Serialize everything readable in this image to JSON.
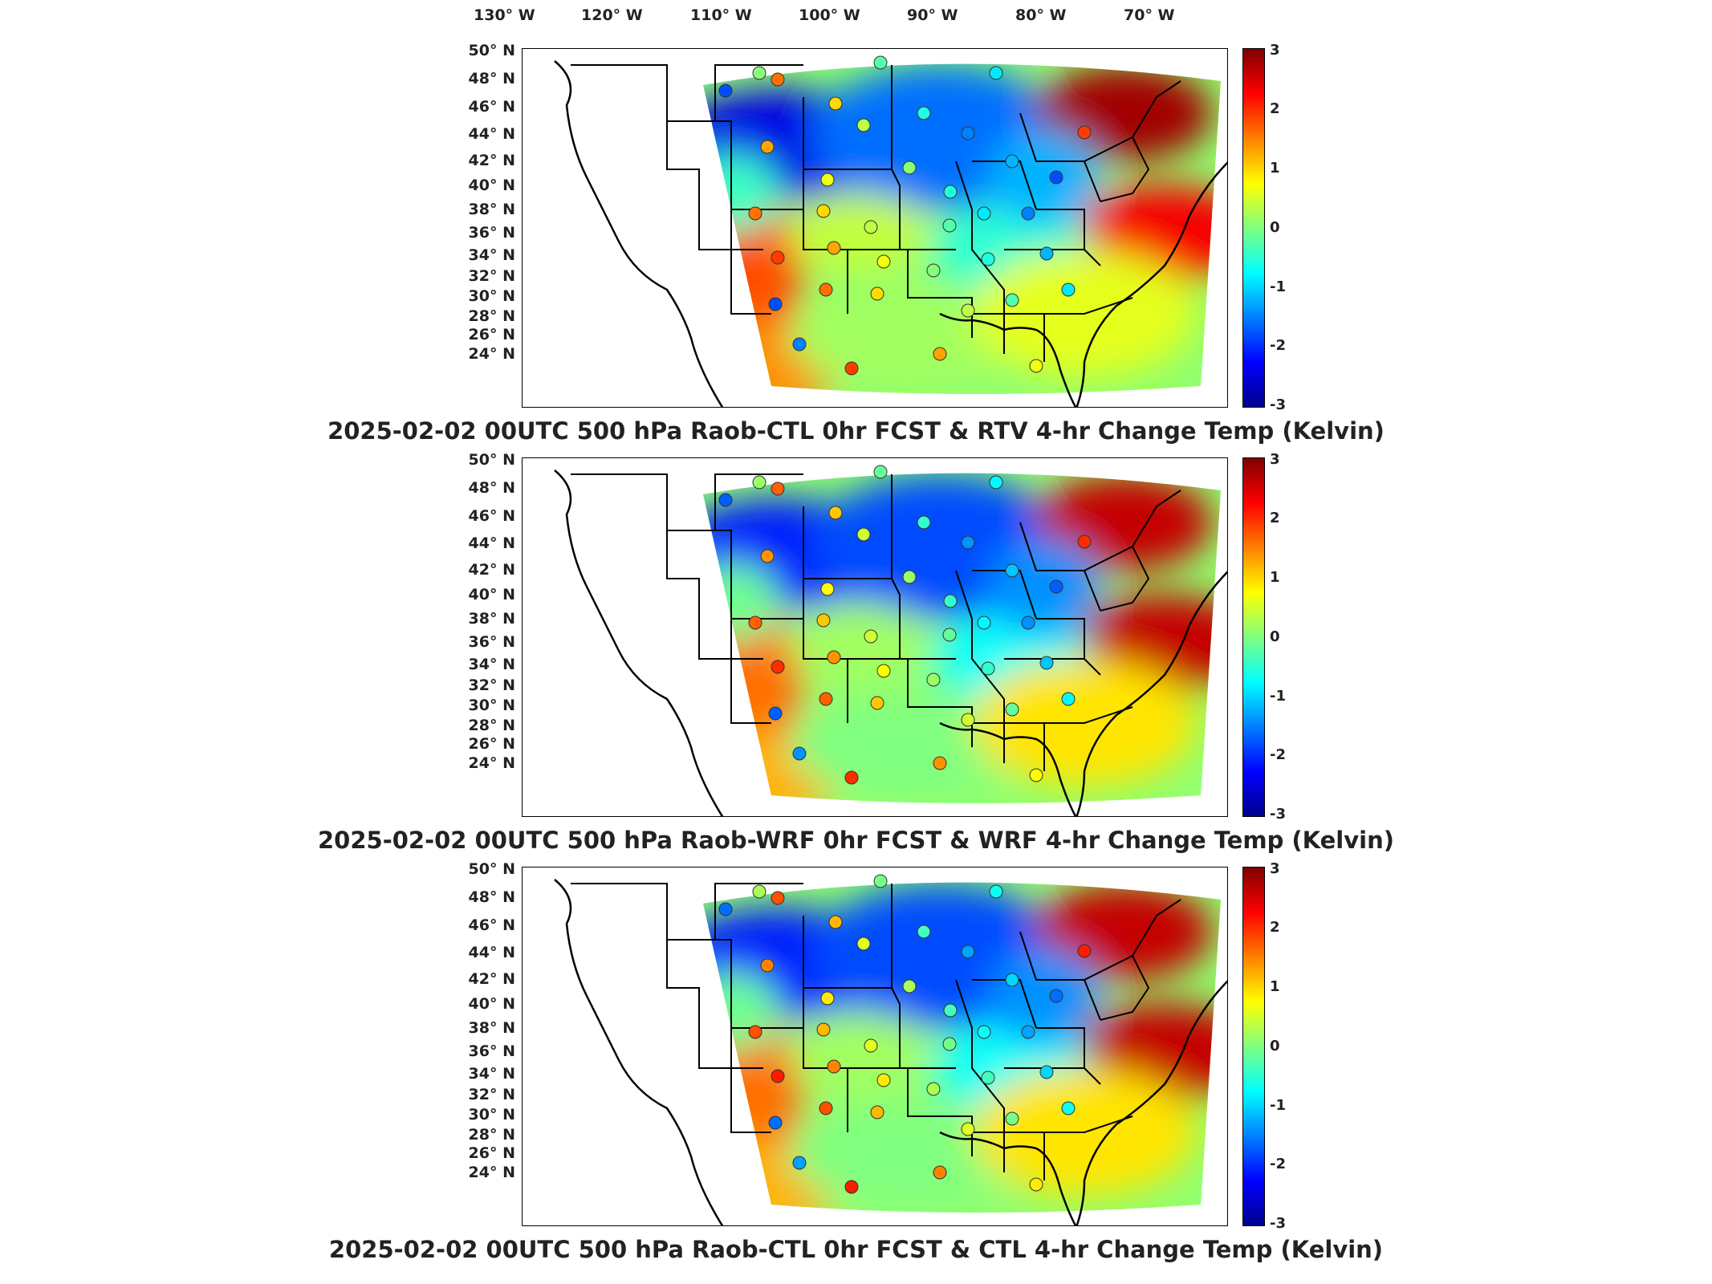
{
  "lon_labels": [
    {
      "text": "130° W"
    },
    {
      "text": "120° W"
    },
    {
      "text": "110° W"
    },
    {
      "text": "100° W"
    },
    {
      "text": "90° W"
    },
    {
      "text": "80° W"
    },
    {
      "text": "70° W"
    }
  ],
  "lat_labels": [
    "50° N",
    "48° N",
    "46° N",
    "44° N",
    "42° N",
    "40° N",
    "38° N",
    "36° N",
    "34° N",
    "32° N",
    "30° N",
    "28° N",
    "26° N",
    "24° N"
  ],
  "colorbar_ticks": [
    "3",
    "2",
    "1",
    "0",
    "-1",
    "-2",
    "-3"
  ],
  "colorbar_range": [
    -3,
    3
  ],
  "colormap": "jet",
  "panels": [
    {
      "title": "2025-02-02 00UTC 500 hPa Raob-CTL 0hr FCST & RTV 4-hr Change Temp (Kelvin)"
    },
    {
      "title": "2025-02-02 00UTC 500 hPa Raob-WRF 0hr FCST & WRF 4-hr Change Temp (Kelvin)"
    },
    {
      "title": "2025-02-02 00UTC 500 hPa Raob-CTL 0hr FCST & CTL 4-hr Change Temp (Kelvin)"
    }
  ]
}
